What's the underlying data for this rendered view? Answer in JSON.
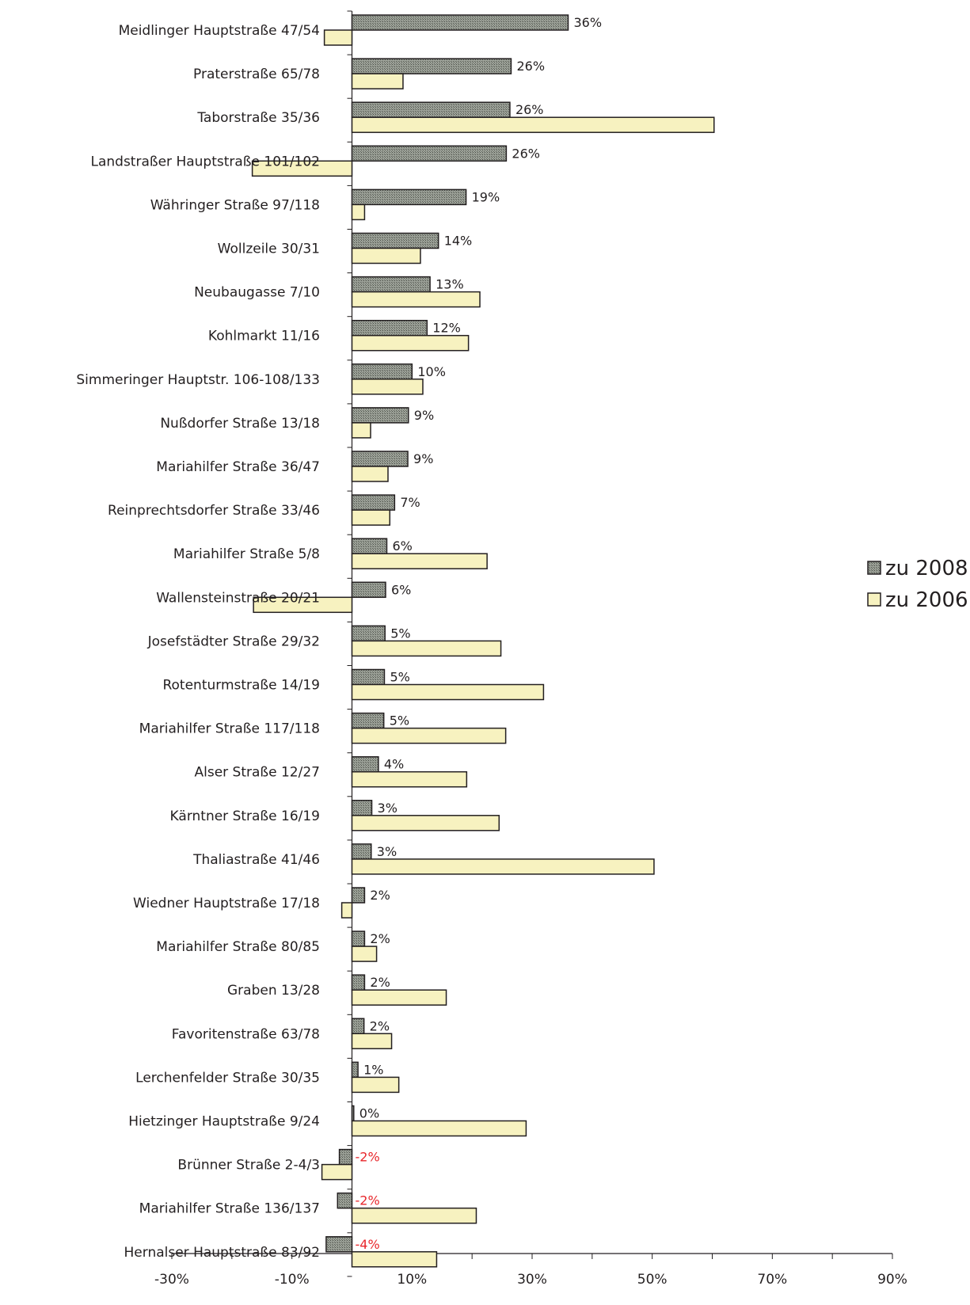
{
  "chart_data": {
    "type": "bar",
    "orientation": "horizontal",
    "categories": [
      "Meidlinger Hauptstraße 47/54",
      "Praterstraße 65/78",
      "Taborstraße 35/36",
      "Landstraßer Hauptstraße 101/102",
      "Währinger Straße 97/118",
      "Wollzeile 30/31",
      "Neubaugasse 7/10",
      "Kohlmarkt 11/16",
      "Simmeringer Hauptstr. 106-108/133",
      "Nußdorfer Straße 13/18",
      "Mariahilfer Straße 36/47",
      "Reinprechtsdorfer Straße 33/46",
      "Mariahilfer Straße 5/8",
      "Wallensteinstraße 20/21",
      "Josefstädter Straße 29/32",
      "Rotenturmstraße 14/19",
      "Mariahilfer Straße 117/118",
      "Alser Straße 12/27",
      "Kärntner Straße 16/19",
      "Thaliastraße 41/46",
      "Wiedner Hauptstraße 17/18",
      "Mariahilfer Straße 80/85",
      "Graben 13/28",
      "Favoritenstraße 63/78",
      "Lerchenfelder Straße 30/35",
      "Hietzinger Hauptstraße 9/24",
      "Brünner Straße 2-4/3",
      "Mariahilfer Straße 136/137",
      "Hernalser Hauptstraße 83/92"
    ],
    "series": [
      {
        "name": "zu 2008",
        "color": "#8a8f87",
        "pattern": "crosshatch",
        "values": [
          36,
          26.5,
          26.3,
          25.7,
          19,
          14.4,
          13,
          12.5,
          10,
          9.4,
          9.3,
          7.1,
          5.8,
          5.6,
          5.5,
          5.4,
          5.3,
          4.4,
          3.3,
          3.2,
          2.1,
          2.1,
          2.1,
          2,
          1,
          0.3,
          -2.1,
          -2.4,
          -4.3
        ],
        "labels": [
          "36%",
          "26%",
          "26%",
          "26%",
          "19%",
          "14%",
          "13%",
          "12%",
          "10%",
          "9%",
          "9%",
          "7%",
          "6%",
          "6%",
          "5%",
          "5%",
          "5%",
          "4%",
          "3%",
          "3%",
          "2%",
          "2%",
          "2%",
          "2%",
          "1%",
          "0%",
          "-2%",
          "-2%",
          "-4%"
        ]
      },
      {
        "name": "zu 2006",
        "color": "#f7f2c0",
        "values": [
          -4.6,
          8.5,
          60.3,
          -16.6,
          2.1,
          11.4,
          21.3,
          19.4,
          11.8,
          3.1,
          6,
          6.3,
          22.5,
          -16.4,
          24.8,
          31.9,
          25.6,
          19.1,
          24.5,
          50.3,
          -1.7,
          4.1,
          15.7,
          6.6,
          7.8,
          29,
          -5,
          20.7,
          14.1
        ]
      }
    ],
    "negative_label_color": "#e8262b",
    "xlim": [
      -30,
      90
    ],
    "xticks": [
      "-30%",
      "-10%",
      "10%",
      "30%",
      "50%",
      "70%",
      "90%"
    ],
    "title": "",
    "xlabel": "",
    "ylabel": "",
    "grid": false,
    "legend": {
      "position": "right",
      "entries": [
        "zu 2008",
        "zu 2006"
      ]
    }
  }
}
